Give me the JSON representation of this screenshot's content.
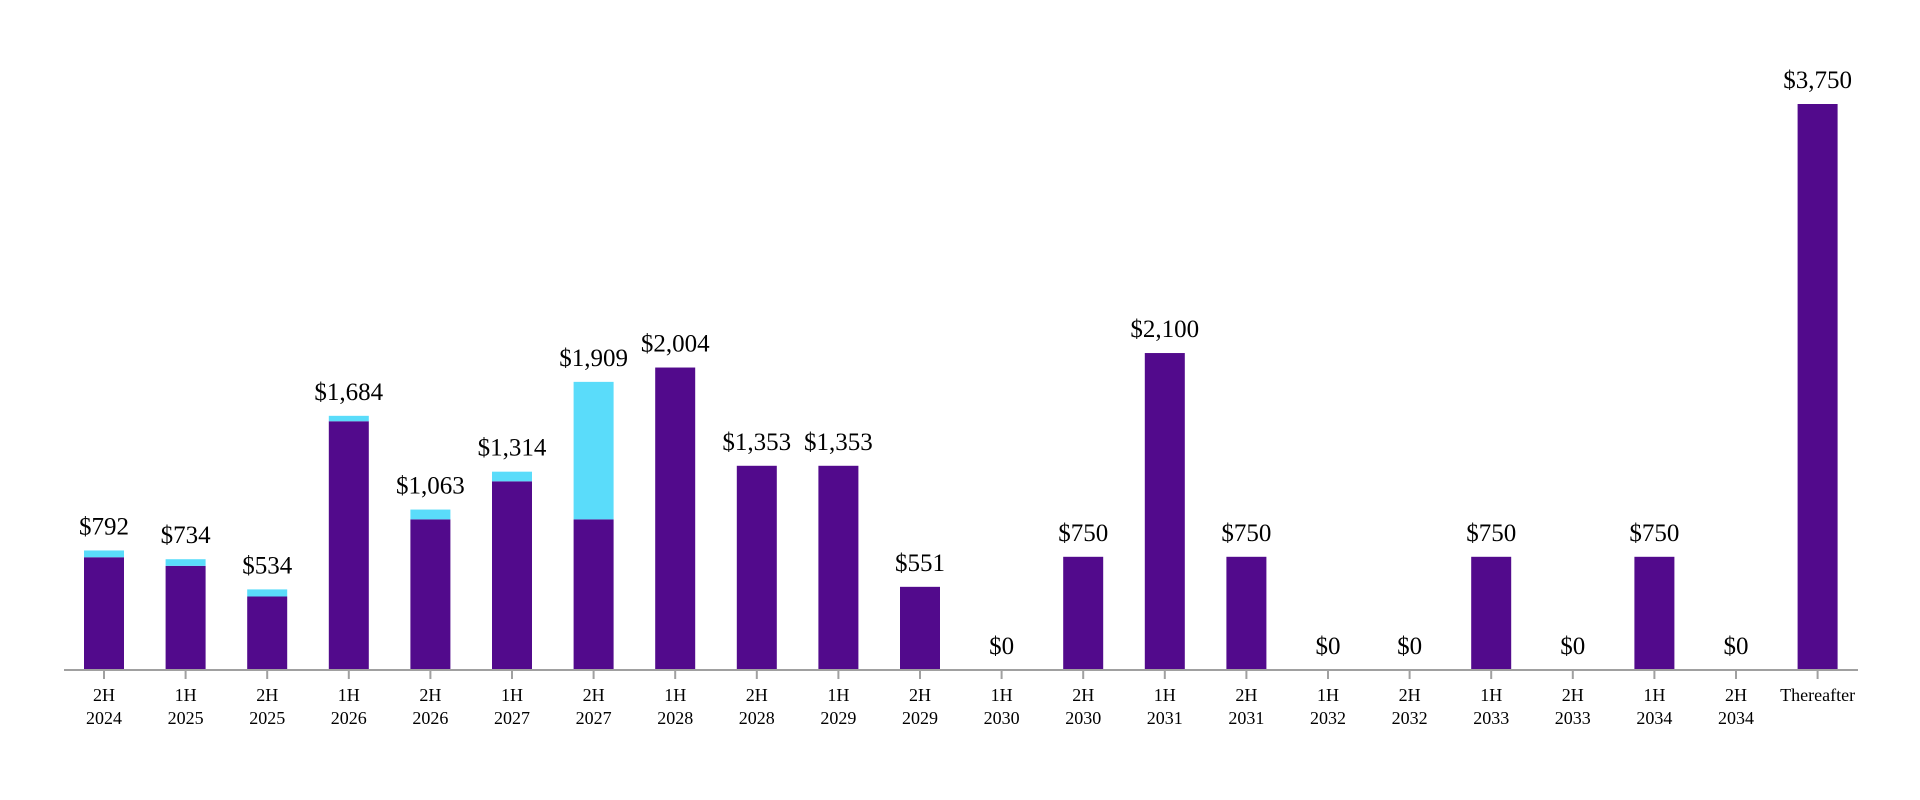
{
  "chart_data": {
    "type": "bar",
    "stacked": true,
    "title": "",
    "xlabel": "",
    "ylabel": "",
    "ylim": [
      0,
      3750
    ],
    "grid": false,
    "legend": "none",
    "categories": [
      [
        "2H",
        "2024"
      ],
      [
        "1H",
        "2025"
      ],
      [
        "2H",
        "2025"
      ],
      [
        "1H",
        "2026"
      ],
      [
        "2H",
        "2026"
      ],
      [
        "1H",
        "2027"
      ],
      [
        "2H",
        "2027"
      ],
      [
        "1H",
        "2028"
      ],
      [
        "2H",
        "2028"
      ],
      [
        "1H",
        "2029"
      ],
      [
        "2H",
        "2029"
      ],
      [
        "1H",
        "2030"
      ],
      [
        "2H",
        "2030"
      ],
      [
        "1H",
        "2031"
      ],
      [
        "2H",
        "2031"
      ],
      [
        "1H",
        "2032"
      ],
      [
        "2H",
        "2032"
      ],
      [
        "1H",
        "2033"
      ],
      [
        "2H",
        "2033"
      ],
      [
        "1H",
        "2034"
      ],
      [
        "2H",
        "2034"
      ],
      [
        "Thereafter"
      ]
    ],
    "totals": [
      792,
      734,
      534,
      1684,
      1063,
      1314,
      1909,
      2004,
      1353,
      1353,
      551,
      0,
      750,
      2100,
      750,
      0,
      0,
      750,
      0,
      750,
      0,
      3750
    ],
    "total_labels": [
      "$792",
      "$734",
      "$534",
      "$1,684",
      "$1,063",
      "$1,314",
      "$1,909",
      "$2,004",
      "$1,353",
      "$1,353",
      "$551",
      "$0",
      "$750",
      "$2,100",
      "$750",
      "$0",
      "$0",
      "$750",
      "$0",
      "$750",
      "$0",
      "$3,750"
    ],
    "series": [
      {
        "values": [
          747,
          690,
          487,
          1648,
          998,
          1250,
          998,
          2004,
          1353,
          1353,
          551,
          0,
          750,
          2100,
          750,
          0,
          0,
          750,
          0,
          750,
          0,
          3750
        ],
        "color": "#520a8c"
      },
      {
        "values": [
          45,
          44,
          47,
          36,
          65,
          64,
          911,
          0,
          0,
          0,
          0,
          0,
          0,
          0,
          0,
          0,
          0,
          0,
          0,
          0,
          0,
          0
        ],
        "color": "#5adcfa"
      }
    ],
    "axis_color": "#a0a0a0"
  }
}
